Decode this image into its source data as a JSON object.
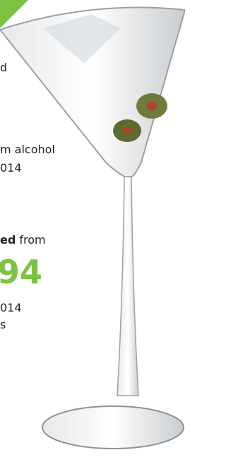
{
  "lines": [
    "d",
    "m alcohol",
    "014",
    "ed",
    " from",
    "94",
    "014",
    "s"
  ]
}
